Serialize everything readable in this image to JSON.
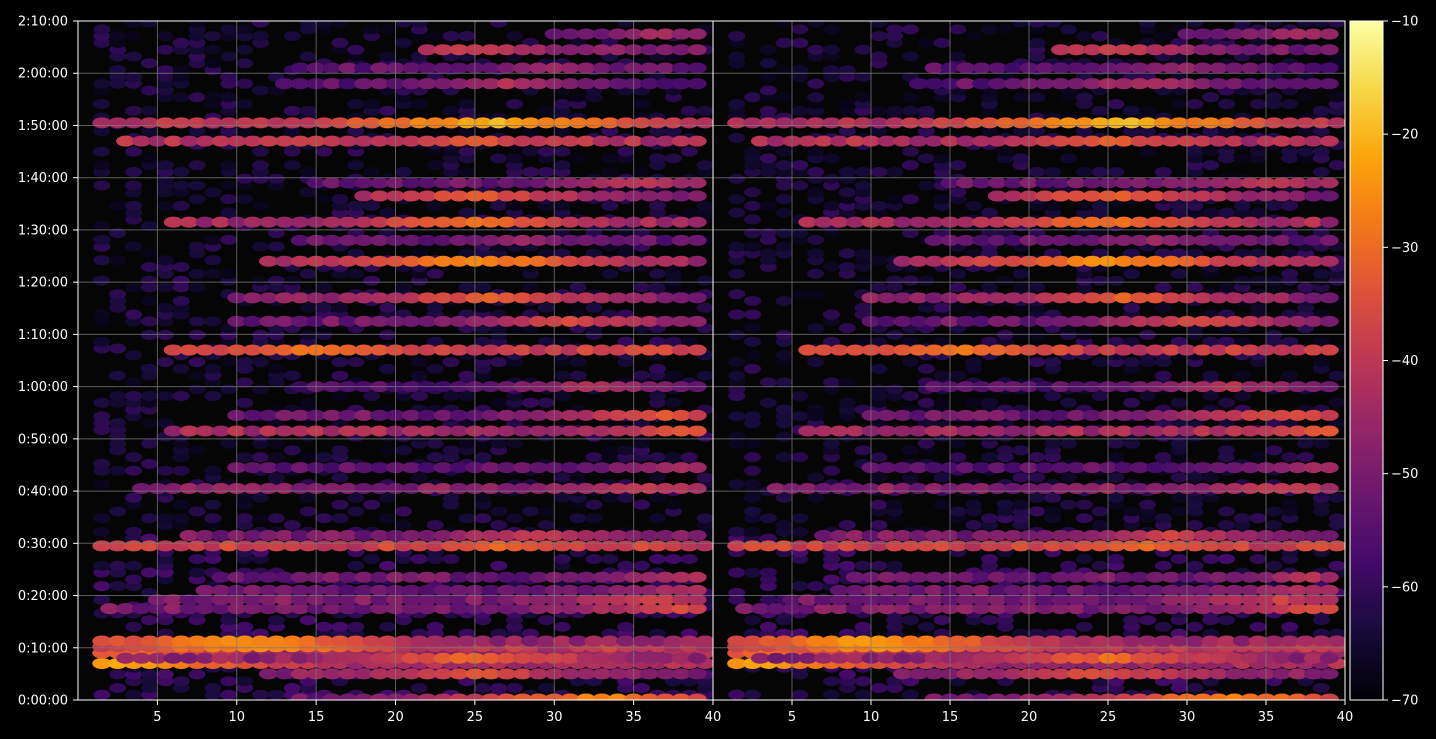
{
  "chart_data": {
    "type": "heatmap",
    "panels": 2,
    "xlim": [
      1,
      40
    ],
    "x_ticks": [
      5,
      10,
      15,
      20,
      25,
      30,
      35,
      40
    ],
    "ylim": [
      0,
      130
    ],
    "y_unit": "minutes",
    "y_ticks": [
      {
        "value": 0,
        "label": "0:00:00"
      },
      {
        "value": 10,
        "label": "0:10:00"
      },
      {
        "value": 20,
        "label": "0:20:00"
      },
      {
        "value": 30,
        "label": "0:30:00"
      },
      {
        "value": 40,
        "label": "0:40:00"
      },
      {
        "value": 50,
        "label": "0:50:00"
      },
      {
        "value": 60,
        "label": "1:00:00"
      },
      {
        "value": 70,
        "label": "1:10:00"
      },
      {
        "value": 80,
        "label": "1:20:00"
      },
      {
        "value": 90,
        "label": "1:30:00"
      },
      {
        "value": 100,
        "label": "1:40:00"
      },
      {
        "value": 110,
        "label": "1:50:00"
      },
      {
        "value": 120,
        "label": "2:00:00"
      },
      {
        "value": 130,
        "label": "2:10:00"
      }
    ],
    "colorbar": {
      "colormap": "inferno",
      "range": [
        -70,
        -10
      ],
      "ticks": [
        -70,
        -60,
        -50,
        -40,
        -30,
        -20,
        -10
      ],
      "tick_labels": [
        "−70",
        "−60",
        "−50",
        "−40",
        "−30",
        "−20",
        "−10"
      ]
    },
    "grid": true,
    "background": "#000000",
    "grid_color": "#7a7a7a",
    "bands": [
      {
        "y": 7.0,
        "x_start": 1.5,
        "peak_x": 2.8,
        "peak_value": -22,
        "base_value": -44
      },
      {
        "y": 9.0,
        "x_start": 1.5,
        "peak_x": 3.0,
        "peak_value": -30,
        "base_value": -45
      },
      {
        "y": 10.2,
        "x_start": 1.5,
        "peak_x": 11.0,
        "peak_value": -24,
        "base_value": -40
      },
      {
        "y": 11.3,
        "x_start": 1.5,
        "peak_x": 10.0,
        "peak_value": -23,
        "base_value": -46
      },
      {
        "y": 5.0,
        "x_start": 12.0,
        "peak_x": 25.0,
        "peak_value": -34,
        "base_value": -48
      },
      {
        "y": 8.0,
        "x_start": 3.0,
        "peak_x": 25.0,
        "peak_value": -30,
        "base_value": -47
      },
      {
        "y": 17.5,
        "x_start": 2.0,
        "peak_x": 38.0,
        "peak_value": -36,
        "base_value": -50
      },
      {
        "y": 19.2,
        "x_start": 5.0,
        "peak_x": 36.0,
        "peak_value": -38,
        "base_value": -50
      },
      {
        "y": 21.0,
        "x_start": 8.0,
        "peak_x": 38.0,
        "peak_value": -42,
        "base_value": -52
      },
      {
        "y": 23.5,
        "x_start": 9.0,
        "peak_x": 38.0,
        "peak_value": -42,
        "base_value": -52
      },
      {
        "y": 29.5,
        "x_start": 1.5,
        "peak_x": 27.0,
        "peak_value": -30,
        "base_value": -38
      },
      {
        "y": 31.5,
        "x_start": 7.0,
        "peak_x": 29.0,
        "peak_value": -38,
        "base_value": -50
      },
      {
        "y": 40.5,
        "x_start": 4.0,
        "peak_x": 36.0,
        "peak_value": -38,
        "base_value": -48
      },
      {
        "y": 44.5,
        "x_start": 10.0,
        "peak_x": 38.0,
        "peak_value": -44,
        "base_value": -54
      },
      {
        "y": 51.5,
        "x_start": 6.0,
        "peak_x": 39.0,
        "peak_value": -33,
        "base_value": -44
      },
      {
        "y": 54.5,
        "x_start": 10.0,
        "peak_x": 37.0,
        "peak_value": -34,
        "base_value": -52
      },
      {
        "y": 60.0,
        "x_start": 14.0,
        "peak_x": 33.0,
        "peak_value": -42,
        "base_value": -56
      },
      {
        "y": 67.0,
        "x_start": 6.0,
        "peak_x": 15.0,
        "peak_value": -28,
        "base_value": -38
      },
      {
        "y": 72.5,
        "x_start": 10.0,
        "peak_x": 31.0,
        "peak_value": -36,
        "base_value": -52
      },
      {
        "y": 77.0,
        "x_start": 10.0,
        "peak_x": 26.0,
        "peak_value": -32,
        "base_value": -48
      },
      {
        "y": 84.0,
        "x_start": 12.0,
        "peak_x": 25.0,
        "peak_value": -25,
        "base_value": -46
      },
      {
        "y": 88.0,
        "x_start": 14.0,
        "peak_x": 28.0,
        "peak_value": -46,
        "base_value": -54
      },
      {
        "y": 91.5,
        "x_start": 6.0,
        "peak_x": 25.0,
        "peak_value": -29,
        "base_value": -44
      },
      {
        "y": 96.5,
        "x_start": 18.0,
        "peak_x": 25.0,
        "peak_value": -32,
        "base_value": -50
      },
      {
        "y": 99.0,
        "x_start": 15.0,
        "peak_x": 36.0,
        "peak_value": -40,
        "base_value": -52
      },
      {
        "y": 107.0,
        "x_start": 3.0,
        "peak_x": 25.0,
        "peak_value": -33,
        "base_value": -42
      },
      {
        "y": 110.5,
        "x_start": 1.5,
        "peak_x": 26.0,
        "peak_value": -20,
        "base_value": -42
      },
      {
        "y": 118.0,
        "x_start": 13.0,
        "peak_x": 27.0,
        "peak_value": -42,
        "base_value": -54
      },
      {
        "y": 121.0,
        "x_start": 14.0,
        "peak_x": 30.0,
        "peak_value": -46,
        "base_value": -54
      },
      {
        "y": 124.5,
        "x_start": 22.0,
        "peak_x": 25.0,
        "peak_value": -38,
        "base_value": -50
      },
      {
        "y": 127.5,
        "x_start": 30.0,
        "peak_x": 37.0,
        "peak_value": -44,
        "base_value": -54
      },
      {
        "y": 0.2,
        "x_start": 14.0,
        "peak_x": 33.0,
        "peak_value": -26,
        "base_value": -52
      }
    ]
  }
}
